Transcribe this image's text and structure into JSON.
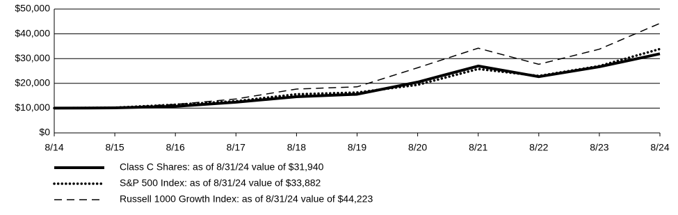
{
  "chart_data": {
    "type": "line",
    "categories": [
      "8/14",
      "8/15",
      "8/16",
      "8/17",
      "8/18",
      "8/19",
      "8/20",
      "8/21",
      "8/22",
      "8/23",
      "8/24"
    ],
    "series": [
      {
        "name": "Class C Shares: as of 8/31/24 value of $31,940",
        "color": "#000000",
        "values": [
          10000,
          10100,
          10700,
          12400,
          14600,
          15600,
          20500,
          27000,
          22700,
          26700,
          31940
        ]
      },
      {
        "name": "S&P 500 Index: as of 8/31/24 value of $33,882",
        "color": "#000000",
        "values": [
          10000,
          10200,
          11400,
          12800,
          15600,
          16300,
          19400,
          25800,
          23000,
          27000,
          33882
        ]
      },
      {
        "name": "Russell 1000 Growth Index: as of 8/31/24 value of $44,223",
        "color": "#000000",
        "values": [
          10000,
          10200,
          11500,
          13700,
          17700,
          18600,
          26300,
          34200,
          27700,
          33800,
          44223
        ]
      }
    ],
    "ylim": [
      0,
      50000
    ],
    "yticks": [
      {
        "value": 0,
        "label": "$0"
      },
      {
        "value": 10000,
        "label": "$10,000"
      },
      {
        "value": 20000,
        "label": "$20,000"
      },
      {
        "value": 30000,
        "label": "$30,000"
      },
      {
        "value": 40000,
        "label": "$40,000"
      },
      {
        "value": 50000,
        "label": "$50,000"
      }
    ],
    "grid": true
  }
}
